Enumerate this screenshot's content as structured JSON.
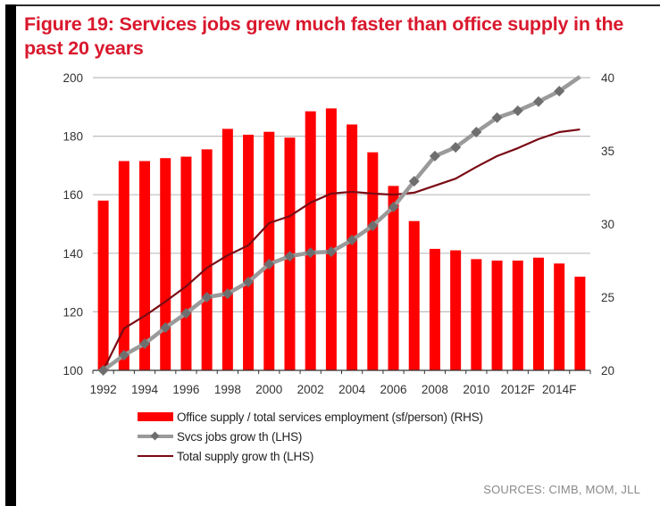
{
  "figure": {
    "title": "Figure 19: Services jobs grew much faster than office supply in the past 20 years",
    "sources": "SOURCES: CIMB, MOM, JLL"
  },
  "colors": {
    "title": "#d9182d",
    "bars": "#ff0000",
    "svcs_line": "#9a9a9a",
    "svcs_marker": "#6e6e6e",
    "supply_line": "#7a0a14",
    "gridline": "#bdbdbd"
  },
  "legend": {
    "items": [
      {
        "label": "Office supply / total services employment (sf/person) (RHS)",
        "icon": "bar-swatch"
      },
      {
        "label": "Svcs jobs grow th (LHS)",
        "icon": "line-diamond-swatch"
      },
      {
        "label": "Total supply grow th (LHS)",
        "icon": "line-swatch"
      }
    ]
  },
  "chart_data": {
    "type": "bar",
    "title": "Figure 19: Services jobs grew much faster than office supply in the past 20 years",
    "xlabel": "",
    "ylabel": "",
    "y2label": "",
    "categories": [
      "1992",
      "1993",
      "1994",
      "1995",
      "1996",
      "1997",
      "1998",
      "1999",
      "2000",
      "2001",
      "2002",
      "2003",
      "2004",
      "2005",
      "2006",
      "2007",
      "2008",
      "2009",
      "2010",
      "2011",
      "2012F",
      "2013F",
      "2014F",
      "2015F"
    ],
    "x_tick_labels": [
      "1992",
      "1994",
      "1996",
      "1998",
      "2000",
      "2002",
      "2004",
      "2006",
      "2008",
      "2010",
      "2012F",
      "2014F"
    ],
    "ylim": [
      100,
      200
    ],
    "y_ticks": [
      100,
      120,
      140,
      160,
      180,
      200
    ],
    "y2lim": [
      20,
      40
    ],
    "y2_ticks": [
      20,
      25,
      30,
      35,
      40
    ],
    "grid": "horizontal (left axis ticks)",
    "legend_position": "bottom",
    "series": [
      {
        "name": "Office supply / total services employment (sf/person) (RHS)",
        "type": "bar",
        "axis": "right",
        "values": [
          31.6,
          34.3,
          34.3,
          34.5,
          34.6,
          35.1,
          36.5,
          36.1,
          36.3,
          35.9,
          37.7,
          37.9,
          36.8,
          34.9,
          32.6,
          30.2,
          28.3,
          28.2,
          27.6,
          27.5,
          27.5,
          27.7,
          27.3,
          26.4
        ]
      },
      {
        "name": "Svcs jobs grow th (LHS)",
        "type": "line",
        "marker": "diamond",
        "axis": "left",
        "values": [
          100,
          105.2,
          109.1,
          114.6,
          119.5,
          125.0,
          126.2,
          130.2,
          136.3,
          139.0,
          140.2,
          140.5,
          144.5,
          149.4,
          155.8,
          164.6,
          173.2,
          176.2,
          181.4,
          186.3,
          188.7,
          191.8,
          195.4,
          200.3
        ]
      },
      {
        "name": "Total supply grow th (LHS)",
        "type": "line",
        "marker": "none",
        "axis": "left",
        "values": [
          100,
          114.3,
          118.6,
          123.5,
          128.7,
          135.0,
          139.3,
          142.7,
          150.3,
          152.7,
          157.3,
          160.4,
          161.0,
          160.4,
          160.0,
          160.7,
          163.1,
          165.5,
          169.5,
          173.2,
          175.9,
          179.0,
          181.4,
          182.3
        ]
      }
    ]
  }
}
